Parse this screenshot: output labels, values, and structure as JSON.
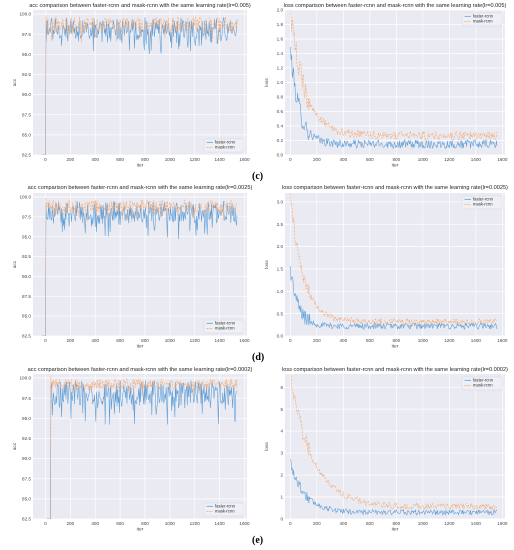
{
  "panel_labels": [
    "(c)",
    "(d)",
    "(e)"
  ],
  "colors": {
    "faster": "#5b9bd5",
    "mask": "#f5a56b",
    "bg": "#e9eaf2",
    "grid": "#ffffff",
    "text": "#444444"
  },
  "chart_data": [
    {
      "type": "line",
      "title": "acc comparison between faster-rcnn and mask-rcnn with the same learning rate(lr=0.005)",
      "xlabel": "iter",
      "ylabel": "acc",
      "xlim": [
        -100,
        1620
      ],
      "ylim": [
        82.5,
        100.5
      ],
      "xticks": [
        "0",
        "200",
        "400",
        "600",
        "800",
        "1000",
        "1200",
        "1400",
        "1600"
      ],
      "yticks": [
        "82.5",
        "85.0",
        "87.5",
        "90.0",
        "92.5",
        "95.0",
        "97.5",
        "100.0"
      ],
      "legend": "bottom-right",
      "series": [
        {
          "name": "faster-rcnn",
          "pattern": "acc_jump",
          "start": 0,
          "end": 1540,
          "initial": 82.5,
          "mean": 98.3,
          "noise": 1.3
        },
        {
          "name": "mask-rcnn",
          "pattern": "acc_jump",
          "start": 0,
          "end": 1540,
          "initial": 82.5,
          "mean": 98.8,
          "noise": 0.9
        }
      ]
    },
    {
      "type": "line",
      "title": "loss comparison between faster-rcnn and mask-rcnn with the same learning rate(lr=0.005)",
      "xlabel": "iter",
      "ylabel": "loss",
      "xlim": [
        -40,
        1620
      ],
      "ylim": [
        0.0,
        2.0
      ],
      "xticks": [
        "0",
        "200",
        "400",
        "600",
        "800",
        "1000",
        "1200",
        "1400",
        "1600"
      ],
      "yticks": [
        "0.0",
        "0.2",
        "0.4",
        "0.6",
        "0.8",
        "1.0",
        "1.2",
        "1.4",
        "1.6",
        "1.8",
        "2.0"
      ],
      "legend": "top-right",
      "series": [
        {
          "name": "faster-rcnn",
          "pattern": "loss_decay",
          "start": 0,
          "end": 1560,
          "peak": 1.45,
          "floor": 0.15,
          "decay": 70,
          "noise": 0.06
        },
        {
          "name": "mask-rcnn",
          "pattern": "loss_decay",
          "start": 0,
          "end": 1560,
          "peak": 2.0,
          "floor": 0.27,
          "decay": 110,
          "noise": 0.06
        }
      ]
    },
    {
      "type": "line",
      "title": "acc comparison between faster-rcnn and mask-rcnn with the same learning rate(lr=0.0025)",
      "xlabel": "iter",
      "ylabel": "acc",
      "xlim": [
        -100,
        1620
      ],
      "ylim": [
        82.5,
        100.5
      ],
      "xticks": [
        "0",
        "200",
        "400",
        "600",
        "800",
        "1000",
        "1200",
        "1400",
        "1600"
      ],
      "yticks": [
        "82.5",
        "85.0",
        "87.5",
        "90.0",
        "92.5",
        "95.0",
        "97.5",
        "100.0"
      ],
      "legend": "bottom-right",
      "series": [
        {
          "name": "faster-rcnn",
          "pattern": "acc_jump",
          "start": 0,
          "end": 1540,
          "initial": 82.5,
          "mean": 98.2,
          "noise": 1.3
        },
        {
          "name": "mask-rcnn",
          "pattern": "acc_jump",
          "start": 0,
          "end": 1540,
          "initial": 82.5,
          "mean": 98.9,
          "noise": 0.8
        }
      ]
    },
    {
      "type": "line",
      "title": "loss comparison between faster-rcnn and mask-rcnn with the same learning rate(lr=0.0025)",
      "xlabel": "iter",
      "ylabel": "loss",
      "xlim": [
        -40,
        1620
      ],
      "ylim": [
        0.0,
        3.2
      ],
      "xticks": [
        "0",
        "200",
        "400",
        "600",
        "800",
        "1000",
        "1200",
        "1400",
        "1600"
      ],
      "yticks": [
        "0.0",
        "0.5",
        "1.0",
        "1.5",
        "2.0",
        "2.5",
        "3.0"
      ],
      "legend": "top-right",
      "series": [
        {
          "name": "faster-rcnn",
          "pattern": "loss_decay",
          "start": 0,
          "end": 1560,
          "peak": 1.5,
          "floor": 0.22,
          "decay": 60,
          "noise": 0.07
        },
        {
          "name": "mask-rcnn",
          "pattern": "loss_decay",
          "start": 0,
          "end": 1560,
          "peak": 3.2,
          "floor": 0.32,
          "decay": 95,
          "noise": 0.07
        }
      ]
    },
    {
      "type": "line",
      "title": "acc comparison between faster-rcnn and mask-rcnn with the same learning rate(lr=0.0002)",
      "xlabel": "iter",
      "ylabel": "acc",
      "xlim": [
        -100,
        1620
      ],
      "ylim": [
        82.5,
        100.5
      ],
      "xticks": [
        "0",
        "200",
        "400",
        "600",
        "800",
        "1000",
        "1200",
        "1400",
        "1600"
      ],
      "yticks": [
        "82.5",
        "85.0",
        "87.5",
        "90.0",
        "92.5",
        "95.0",
        "97.5",
        "100.0"
      ],
      "legend": "bottom-right",
      "series": [
        {
          "name": "faster-rcnn",
          "pattern": "acc_jump",
          "start": 40,
          "end": 1540,
          "initial": 82.5,
          "mean": 98.2,
          "noise": 1.6
        },
        {
          "name": "mask-rcnn",
          "pattern": "acc_jump",
          "start": 40,
          "end": 1540,
          "initial": 82.5,
          "mean": 99.3,
          "noise": 0.6
        }
      ]
    },
    {
      "type": "line",
      "title": "loss comparison between faster-rcnn and mask-rcnn with the same learning rate(lr=0.0002)",
      "xlabel": "iter",
      "ylabel": "loss",
      "xlim": [
        -40,
        1620
      ],
      "ylim": [
        0,
        6.6
      ],
      "xticks": [
        "0",
        "200",
        "400",
        "600",
        "800",
        "1000",
        "1200",
        "1400",
        "1600"
      ],
      "yticks": [
        "0",
        "1",
        "2",
        "3",
        "4",
        "5",
        "6"
      ],
      "legend": "top-right",
      "series": [
        {
          "name": "faster-rcnn",
          "pattern": "loss_decay",
          "start": 0,
          "end": 1560,
          "peak": 2.6,
          "floor": 0.3,
          "decay": 110,
          "noise": 0.12
        },
        {
          "name": "mask-rcnn",
          "pattern": "loss_decay",
          "start": 0,
          "end": 1560,
          "peak": 6.5,
          "floor": 0.55,
          "decay": 170,
          "noise": 0.15
        }
      ]
    }
  ]
}
